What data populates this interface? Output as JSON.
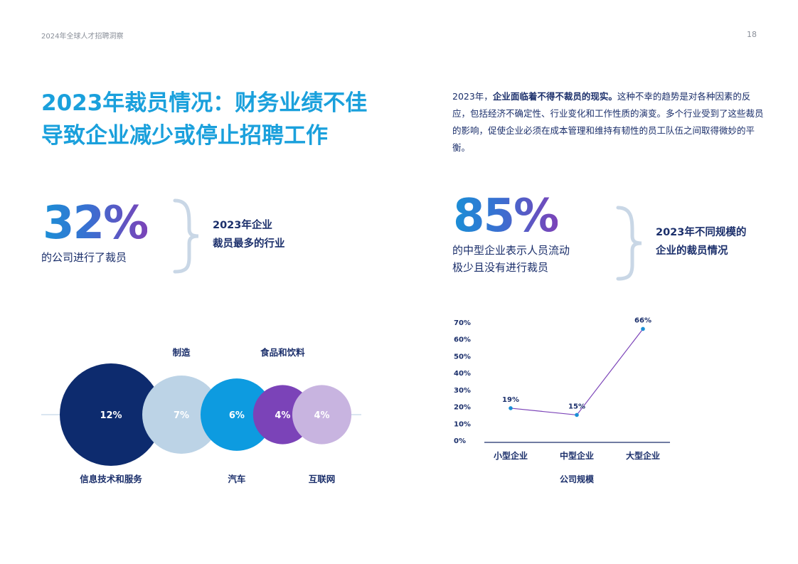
{
  "header": {
    "report_title": "2024年全球人才招聘洞察",
    "page_number": "18"
  },
  "title": {
    "line1": "2023年裁员情况：财务业绩不佳",
    "line2": "导致企业减少或停止招聘工作"
  },
  "intro": {
    "lead": "2023年，",
    "bold": "企业面临着不得不裁员的现实。",
    "rest": "这种不幸的趋势是对各种因素的反应，包括经济不确定性、行业变化和工作性质的演变。多个行业受到了这些裁员的影响，促使企业必须在成本管理和维持有韧性的员工队伍之间取得微妙的平衡。"
  },
  "stat_left": {
    "value": "32%",
    "text": "的公司进行了裁员",
    "label_line1": "2023年企业",
    "label_line2": "裁员最多的行业"
  },
  "stat_right": {
    "value": "85%",
    "text_line1": "的中型企业表示人员流动",
    "text_line2": "极少且没有进行裁员",
    "label_line1": "2023年不同规模的",
    "label_line2": "企业的裁员情况"
  },
  "colors": {
    "accent": "#1aa0dc",
    "navy": "#1b2f6b",
    "purple": "#7b43b8",
    "brace": "#c9d7e6"
  },
  "chart_data": [
    {
      "type": "bubble",
      "categories": [
        "信息技术和服务",
        "制造",
        "汽车",
        "食品和饮料",
        "互联网"
      ],
      "values": [
        12,
        7,
        6,
        4,
        4
      ],
      "value_labels": [
        "12%",
        "7%",
        "6%",
        "4%",
        "4%"
      ],
      "label_positions": [
        "below",
        "above",
        "below",
        "above",
        "below"
      ],
      "colors": [
        "#0d2b6e",
        "#bcd3e6",
        "#0d9be0",
        "#7b43b8",
        "#c8b4e0"
      ]
    },
    {
      "type": "line",
      "categories": [
        "小型企业",
        "中型企业",
        "大型企业"
      ],
      "series": [
        {
          "values": [
            19,
            15,
            66
          ],
          "labels": [
            "19%",
            "15%",
            "66%"
          ]
        }
      ],
      "xlabel": "公司规模",
      "ylabel": "",
      "ylim": [
        0,
        70
      ],
      "yticks": [
        "0%",
        "10%",
        "20%",
        "30%",
        "40%",
        "50%",
        "60%",
        "70%"
      ],
      "grid": false,
      "line_color": "#7b43b8",
      "point_color": "#1a8fd6"
    }
  ]
}
